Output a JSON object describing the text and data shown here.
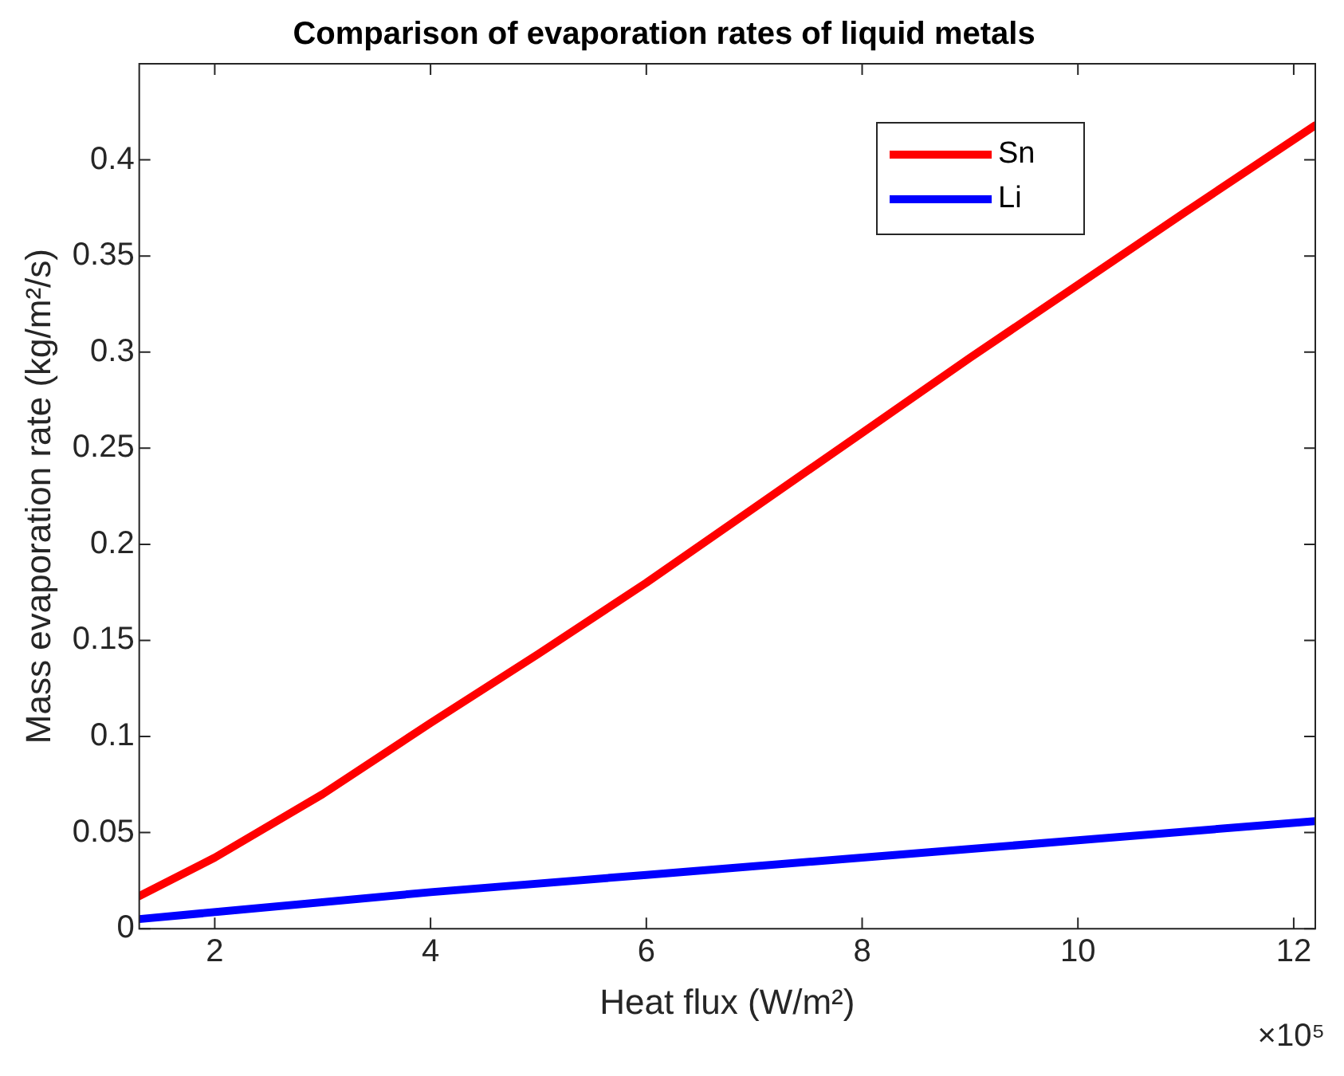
{
  "chart_data": {
    "type": "line",
    "title": "Comparison of evaporation rates of liquid metals",
    "xlabel": "Heat flux (W/m²)",
    "ylabel": "Mass evaporation rate (kg/m²/s)",
    "annotations": [
      "×10⁵"
    ],
    "xlim": [
      1.3,
      12.2
    ],
    "xticks": [
      2,
      4,
      6,
      8,
      10,
      12
    ],
    "ylim": [
      0,
      0.45
    ],
    "yticks": [
      0,
      0.05,
      0.1,
      0.15,
      0.2,
      0.25,
      0.3,
      0.35,
      0.4
    ],
    "grid": false,
    "legend": "top right",
    "marker": "none",
    "line_style": "solid",
    "series": [
      {
        "name": "Sn",
        "color": "#ff0000",
        "x": [
          1.3,
          2,
          3,
          4,
          5,
          6,
          7,
          8,
          9,
          10,
          11,
          12.2
        ],
        "values": [
          0.017,
          0.037,
          0.07,
          0.107,
          0.143,
          0.18,
          0.219,
          0.258,
          0.297,
          0.335,
          0.373,
          0.418
        ]
      },
      {
        "name": "Li",
        "color": "#0000ff",
        "x": [
          1.3,
          4,
          6,
          8,
          10,
          12.2
        ],
        "values": [
          0.005,
          0.019,
          0.028,
          0.037,
          0.046,
          0.056
        ]
      }
    ]
  }
}
